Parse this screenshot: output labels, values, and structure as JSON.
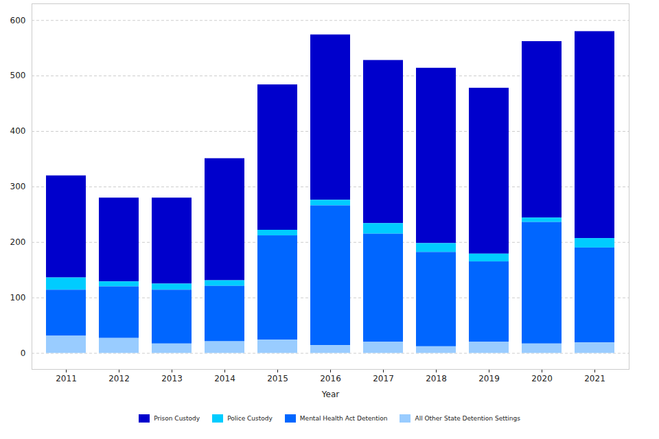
{
  "chart_data": {
    "type": "bar",
    "stacked": true,
    "x_label": "Year",
    "categories": [
      "2011",
      "2012",
      "2013",
      "2014",
      "2015",
      "2016",
      "2017",
      "2018",
      "2019",
      "2020",
      "2021"
    ],
    "series": [
      {
        "name": "Prison Custody",
        "color": "#0000cc",
        "values": [
          184,
          151,
          155,
          220,
          262,
          298,
          294,
          316,
          299,
          318,
          373
        ]
      },
      {
        "name": "Police Custody",
        "color": "#00ccff",
        "values": [
          22,
          9,
          11,
          10,
          10,
          10,
          19,
          16,
          14,
          8,
          17
        ]
      },
      {
        "name": "Mental Health Act Detention",
        "color": "#0066ff",
        "values": [
          83,
          93,
          97,
          100,
          188,
          252,
          195,
          170,
          145,
          219,
          171
        ]
      },
      {
        "name": "All Other State Detention Settings",
        "color": "#99ccff",
        "values": [
          31,
          27,
          17,
          21,
          24,
          14,
          20,
          12,
          20,
          17,
          19
        ]
      }
    ],
    "ylim": [
      -29,
      630
    ],
    "yticks": [
      0,
      100,
      200,
      300,
      400,
      500,
      600
    ],
    "grid": true,
    "legend": "bottom"
  }
}
